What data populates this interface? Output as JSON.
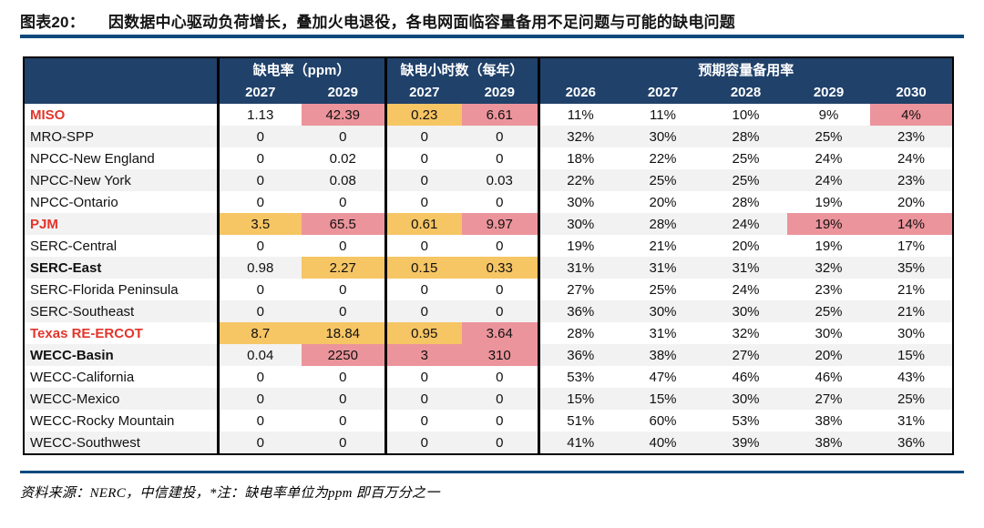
{
  "title": {
    "label": "图表20：",
    "text": "因数据中心驱动负荷增长，叠加火电退役，各电网面临容量备用不足问题与可能的缺电问题"
  },
  "table": {
    "col_groups": [
      {
        "label": "缺电率（ppm）",
        "span": 2
      },
      {
        "label": "缺电小时数（每年）",
        "span": 2
      },
      {
        "label": "预期容量备用率",
        "span": 5
      }
    ],
    "years": [
      "2027",
      "2029",
      "2027",
      "2029",
      "2026",
      "2027",
      "2028",
      "2029",
      "2030"
    ],
    "rows": [
      {
        "name": "MISO",
        "style": "red",
        "values": [
          "1.13",
          "42.39",
          "0.23",
          "6.61",
          "11%",
          "11%",
          "10%",
          "9%",
          "4%"
        ],
        "highlights": [
          "",
          "p",
          "y",
          "p",
          "",
          "",
          "",
          "",
          "p"
        ]
      },
      {
        "name": "MRO-SPP",
        "style": "",
        "values": [
          "0",
          "0",
          "0",
          "0",
          "32%",
          "30%",
          "28%",
          "25%",
          "23%"
        ],
        "highlights": [
          "",
          "",
          "",
          "",
          "",
          "",
          "",
          "",
          ""
        ]
      },
      {
        "name": "NPCC-New England",
        "style": "",
        "values": [
          "0",
          "0.02",
          "0",
          "0",
          "18%",
          "22%",
          "25%",
          "24%",
          "24%"
        ],
        "highlights": [
          "",
          "",
          "",
          "",
          "",
          "",
          "",
          "",
          ""
        ]
      },
      {
        "name": "NPCC-New York",
        "style": "",
        "values": [
          "0",
          "0.08",
          "0",
          "0.03",
          "22%",
          "25%",
          "25%",
          "24%",
          "23%"
        ],
        "highlights": [
          "",
          "",
          "",
          "",
          "",
          "",
          "",
          "",
          ""
        ]
      },
      {
        "name": "NPCC-Ontario",
        "style": "",
        "values": [
          "0",
          "0",
          "0",
          "0",
          "30%",
          "20%",
          "28%",
          "19%",
          "20%"
        ],
        "highlights": [
          "",
          "",
          "",
          "",
          "",
          "",
          "",
          "",
          ""
        ]
      },
      {
        "name": "PJM",
        "style": "red",
        "values": [
          "3.5",
          "65.5",
          "0.61",
          "9.97",
          "30%",
          "28%",
          "24%",
          "19%",
          "14%"
        ],
        "highlights": [
          "y",
          "p",
          "y",
          "p",
          "",
          "",
          "",
          "p",
          "p"
        ]
      },
      {
        "name": "SERC-Central",
        "style": "",
        "values": [
          "0",
          "0",
          "0",
          "0",
          "19%",
          "21%",
          "20%",
          "19%",
          "17%"
        ],
        "highlights": [
          "",
          "",
          "",
          "",
          "",
          "",
          "",
          "",
          ""
        ]
      },
      {
        "name": "SERC-East",
        "style": "bold",
        "values": [
          "0.98",
          "2.27",
          "0.15",
          "0.33",
          "31%",
          "31%",
          "31%",
          "32%",
          "35%"
        ],
        "highlights": [
          "",
          "y",
          "y",
          "y",
          "",
          "",
          "",
          "",
          ""
        ]
      },
      {
        "name": "SERC-Florida Peninsula",
        "style": "",
        "values": [
          "0",
          "0",
          "0",
          "0",
          "27%",
          "25%",
          "24%",
          "23%",
          "21%"
        ],
        "highlights": [
          "",
          "",
          "",
          "",
          "",
          "",
          "",
          "",
          ""
        ]
      },
      {
        "name": "SERC-Southeast",
        "style": "",
        "values": [
          "0",
          "0",
          "0",
          "0",
          "36%",
          "30%",
          "30%",
          "25%",
          "21%"
        ],
        "highlights": [
          "",
          "",
          "",
          "",
          "",
          "",
          "",
          "",
          ""
        ]
      },
      {
        "name": "Texas RE-ERCOT",
        "style": "red",
        "values": [
          "8.7",
          "18.84",
          "0.95",
          "3.64",
          "28%",
          "31%",
          "32%",
          "30%",
          "30%"
        ],
        "highlights": [
          "y",
          "y",
          "y",
          "p",
          "",
          "",
          "",
          "",
          ""
        ]
      },
      {
        "name": "WECC-Basin",
        "style": "bold",
        "values": [
          "0.04",
          "2250",
          "3",
          "310",
          "36%",
          "38%",
          "27%",
          "20%",
          "15%"
        ],
        "highlights": [
          "",
          "p",
          "p",
          "p",
          "",
          "",
          "",
          "",
          ""
        ]
      },
      {
        "name": "WECC-California",
        "style": "",
        "values": [
          "0",
          "0",
          "0",
          "0",
          "53%",
          "47%",
          "46%",
          "46%",
          "43%"
        ],
        "highlights": [
          "",
          "",
          "",
          "",
          "",
          "",
          "",
          "",
          ""
        ]
      },
      {
        "name": "WECC-Mexico",
        "style": "",
        "values": [
          "0",
          "0",
          "0",
          "0",
          "15%",
          "15%",
          "30%",
          "27%",
          "25%"
        ],
        "highlights": [
          "",
          "",
          "",
          "",
          "",
          "",
          "",
          "",
          ""
        ]
      },
      {
        "name": "WECC-Rocky Mountain",
        "style": "",
        "values": [
          "0",
          "0",
          "0",
          "0",
          "51%",
          "60%",
          "53%",
          "38%",
          "31%"
        ],
        "highlights": [
          "",
          "",
          "",
          "",
          "",
          "",
          "",
          "",
          ""
        ]
      },
      {
        "name": "WECC-Southwest",
        "style": "",
        "values": [
          "0",
          "0",
          "0",
          "0",
          "41%",
          "40%",
          "39%",
          "38%",
          "36%"
        ],
        "highlights": [
          "",
          "",
          "",
          "",
          "",
          "",
          "",
          "",
          ""
        ]
      }
    ]
  },
  "footer": {
    "text": "资料来源：NERC，中信建投，*注：缺电率单位为ppm 即百万分之一"
  },
  "colors": {
    "header_bg": "#20416A",
    "rule_blue": "#10497E",
    "highlight_yellow": "#F6C564",
    "highlight_pink": "#EC949B",
    "red_label": "#E2352B",
    "row_stripe": "#F2F2F2"
  }
}
